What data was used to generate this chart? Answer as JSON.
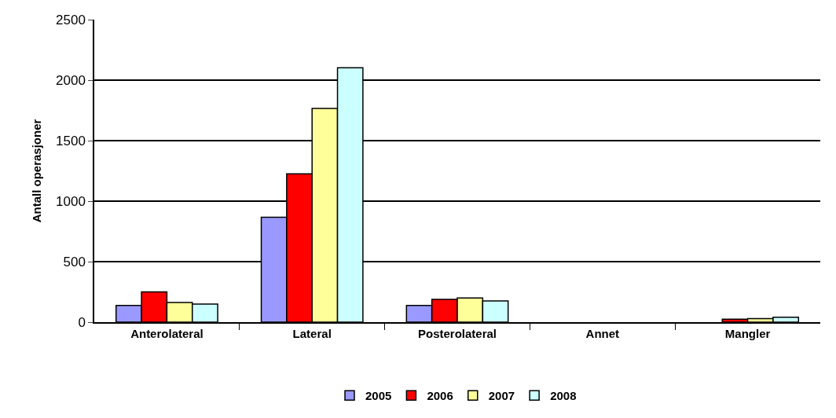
{
  "chart_data": {
    "type": "bar",
    "ylabel": "Antall operasjoner",
    "categories": [
      "Anterolateral",
      "Lateral",
      "Posterolateral",
      "Annet",
      "Mangler"
    ],
    "series": [
      {
        "name": "2005",
        "color": "#9999ff",
        "values": [
          138,
          867,
          138,
          null,
          null
        ]
      },
      {
        "name": "2006",
        "color": "#ff0000",
        "values": [
          250,
          1226,
          188,
          null,
          25
        ]
      },
      {
        "name": "2007",
        "color": "#ffff99",
        "values": [
          163,
          1766,
          200,
          null,
          30
        ]
      },
      {
        "name": "2008",
        "color": "#ccffff",
        "values": [
          150,
          2103,
          175,
          null,
          40
        ]
      }
    ],
    "ylim": [
      0,
      2500
    ],
    "yticks": [
      0,
      500,
      1000,
      1500,
      2000,
      2500
    ],
    "grid": "y",
    "legend": "bottom"
  }
}
